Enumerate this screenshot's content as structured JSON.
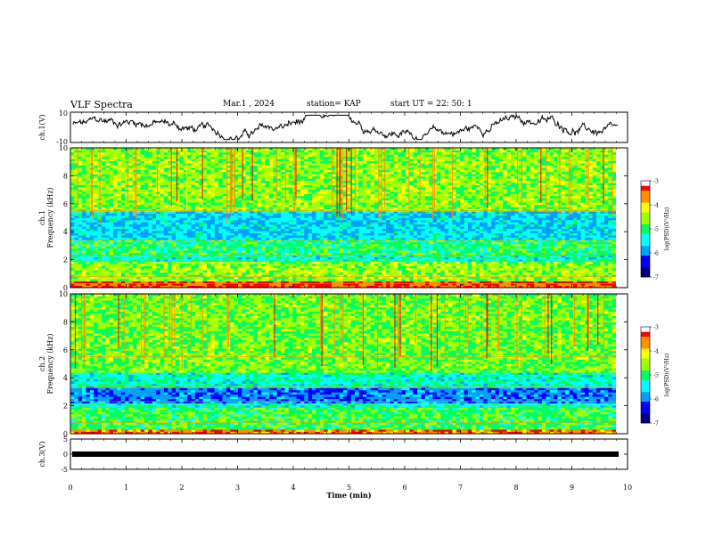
{
  "header": {
    "title": "VLF Spectra",
    "date": "Mar.1 , 2024",
    "station": "station= KAP",
    "start": "start UT = 22: 50: 1"
  },
  "colors": {
    "spectrogram_scale": [
      "#00007a",
      "#0000ff",
      "#00a0ff",
      "#00ffff",
      "#00ff60",
      "#a0ff00",
      "#ffff00",
      "#ff9000",
      "#ff0000",
      "#ffffff"
    ],
    "trace": "#000000"
  },
  "chart_data": [
    {
      "type": "line",
      "name": "ch1-waveform",
      "ylabel": "ch.1(V)",
      "ylim": [
        -10,
        10
      ],
      "y_ticks": [
        "10",
        "-10"
      ],
      "xlim": [
        0,
        10
      ],
      "note_values": "noisy waveform fluctuating roughly between -8 and +8 V",
      "series": [
        {
          "values_min": -8,
          "values_max": 8
        }
      ]
    },
    {
      "type": "heatmap",
      "name": "ch1-spectrogram",
      "ylabel": "ch.1\nFrequency (kHz)",
      "ylabel_lines": [
        "ch.1",
        "Frequency (kHz)"
      ],
      "ylim": [
        0,
        10
      ],
      "y_ticks": [
        "0",
        "2",
        "4",
        "6",
        "8",
        "10"
      ],
      "xlim": [
        0,
        10
      ],
      "colorbar": {
        "label": "log(PSD)(V²/Hz)",
        "range": [
          -7,
          -3
        ],
        "ticks": [
          "-3",
          "-4",
          "-5",
          "-6",
          "-7"
        ]
      },
      "bands": [
        {
          "from": 0,
          "to": 0.4,
          "level": -3.4
        },
        {
          "from": 0.4,
          "to": 1.9,
          "level": -4.6
        },
        {
          "from": 1.9,
          "to": 2.3,
          "level": -5.3
        },
        {
          "from": 2.3,
          "to": 3.4,
          "level": -5.0
        },
        {
          "from": 3.4,
          "to": 5.5,
          "level": -5.6
        },
        {
          "from": 5.5,
          "to": 10,
          "level": -4.6
        }
      ]
    },
    {
      "type": "heatmap",
      "name": "ch2-spectrogram",
      "ylabel": "ch.2\nFrequency (kHz)",
      "ylabel_lines": [
        "ch.2",
        "Frequency (kHz)"
      ],
      "ylim": [
        0,
        10
      ],
      "y_ticks": [
        "0",
        "2",
        "4",
        "6",
        "8",
        "10"
      ],
      "xlim": [
        0,
        10
      ],
      "colorbar": {
        "label": "log(PSD)(V²/Hz)",
        "range": [
          -7,
          -3
        ],
        "ticks": [
          "-3",
          "-4",
          "-5",
          "-6",
          "-7"
        ]
      },
      "bands": [
        {
          "from": 0,
          "to": 0.3,
          "level": -3.6
        },
        {
          "from": 0.3,
          "to": 1.8,
          "level": -4.9
        },
        {
          "from": 1.8,
          "to": 2.2,
          "level": -5.3
        },
        {
          "from": 2.2,
          "to": 3.3,
          "level": -6.0
        },
        {
          "from": 3.3,
          "to": 4.3,
          "level": -5.3
        },
        {
          "from": 4.3,
          "to": 10,
          "level": -4.7
        }
      ]
    },
    {
      "type": "line",
      "name": "ch3-waveform",
      "ylabel": "ch.3(V)",
      "ylim": [
        -5,
        5
      ],
      "y_ticks": [
        "5",
        "0",
        "-5"
      ],
      "xlim": [
        0,
        10
      ],
      "xlabel": "Time (min)",
      "x_ticks": [
        "0",
        "1",
        "2",
        "3",
        "4",
        "5",
        "6",
        "7",
        "8",
        "9",
        "10"
      ],
      "series": [
        {
          "values_min": 0,
          "values_max": 0
        }
      ]
    }
  ]
}
